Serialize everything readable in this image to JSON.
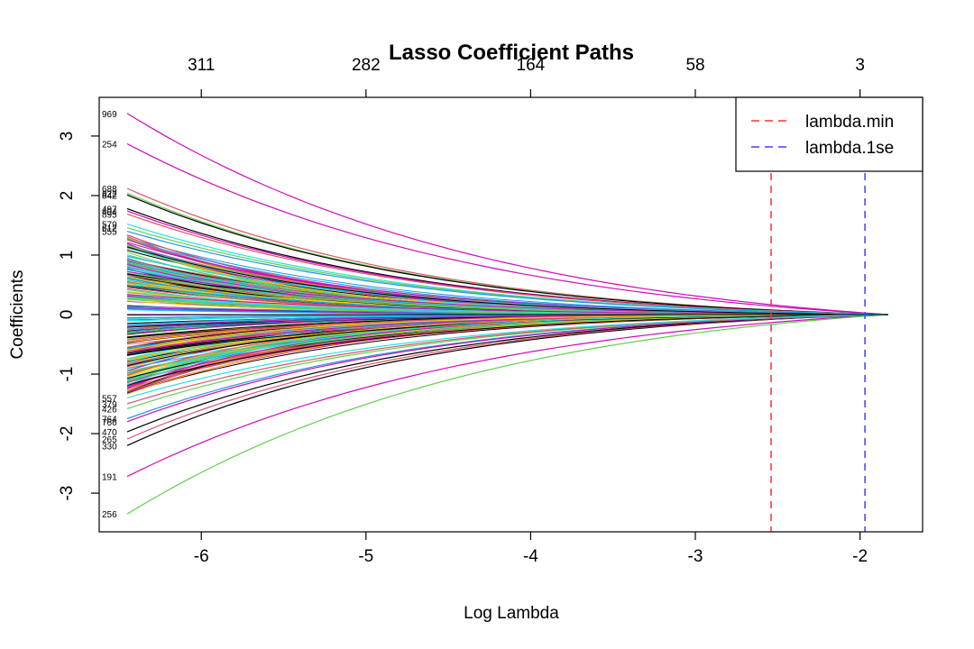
{
  "chart_data": {
    "type": "line",
    "title": "Lasso Coefficient Paths",
    "xlabel": "Log Lambda",
    "ylabel": "Coefficients",
    "xlim": [
      -6.62,
      -1.62
    ],
    "ylim": [
      -3.65,
      3.65
    ],
    "x_ticks": [
      -6,
      -5,
      -4,
      -3,
      -2
    ],
    "x_tick_labels": [
      "-6",
      "-5",
      "-4",
      "-3",
      "-2"
    ],
    "y_ticks": [
      -3,
      -2,
      -1,
      0,
      1,
      2,
      3
    ],
    "y_tick_labels": [
      "-3",
      "-2",
      "-1",
      "0",
      "1",
      "2",
      "3"
    ],
    "top_axis": {
      "positions": [
        -6,
        -5,
        -4,
        -3,
        -2
      ],
      "labels": [
        "311",
        "282",
        "164",
        "58",
        "3"
      ]
    },
    "x_start": -6.45,
    "x_end": -1.83,
    "grid": false,
    "legend": {
      "position": "top-right",
      "entries": [
        {
          "label": "lambda.min",
          "color": "#ff3030",
          "style": "dashed"
        },
        {
          "label": "lambda.1se",
          "color": "#4040ff",
          "style": "dashed"
        }
      ]
    },
    "reference_lines": [
      {
        "name": "lambda.min",
        "x": -2.54,
        "color": "#ff3030"
      },
      {
        "name": "lambda.1se",
        "x": -1.97,
        "color": "#4040ff"
      }
    ],
    "palette": [
      "#000000",
      "#df536b",
      "#61d04f",
      "#2297e6",
      "#28e2e5",
      "#cd0bbc",
      "#f5c710",
      "#9e9e9e"
    ],
    "series": [
      {
        "label": "969",
        "start": 3.38,
        "color": "#cd0bbc"
      },
      {
        "label": "254",
        "start": 2.87,
        "color": "#cd0bbc"
      },
      {
        "label": "688",
        "start": 2.12,
        "color": "#df536b"
      },
      {
        "label": "822",
        "start": 2.04,
        "color": "#61d04f"
      },
      {
        "label": "842",
        "start": 2.01,
        "color": "#000000"
      },
      {
        "label": "497",
        "start": 1.78,
        "color": "#000000"
      },
      {
        "label": "404",
        "start": 1.74,
        "color": "#cd0bbc"
      },
      {
        "label": "895",
        "start": 1.69,
        "color": "#df536b"
      },
      {
        "label": "579",
        "start": 1.52,
        "color": "#28e2e5"
      },
      {
        "label": "612",
        "start": 1.46,
        "color": "#61d04f"
      },
      {
        "label": "555",
        "start": 1.4,
        "color": "#2297e6"
      },
      {
        "label": "191",
        "start": -2.72,
        "color": "#cd0bbc"
      },
      {
        "label": "256",
        "start": -3.35,
        "color": "#61d04f"
      },
      {
        "label": "330",
        "start": -2.2,
        "color": "#000000"
      },
      {
        "label": "265",
        "start": -2.09,
        "color": "#df536b"
      },
      {
        "label": "470",
        "start": -1.97,
        "color": "#000000"
      },
      {
        "label": "764",
        "start": -1.75,
        "color": "#2297e6"
      },
      {
        "label": "766",
        "start": -1.8,
        "color": "#cd0bbc"
      },
      {
        "label": "426",
        "start": -1.58,
        "color": "#61d04f"
      },
      {
        "label": "379",
        "start": -1.5,
        "color": "#df536b"
      },
      {
        "label": "557",
        "start": -1.4,
        "color": "#28e2e5"
      }
    ],
    "bundle": {
      "count": 260,
      "start_range": [
        -1.35,
        1.35
      ]
    }
  }
}
